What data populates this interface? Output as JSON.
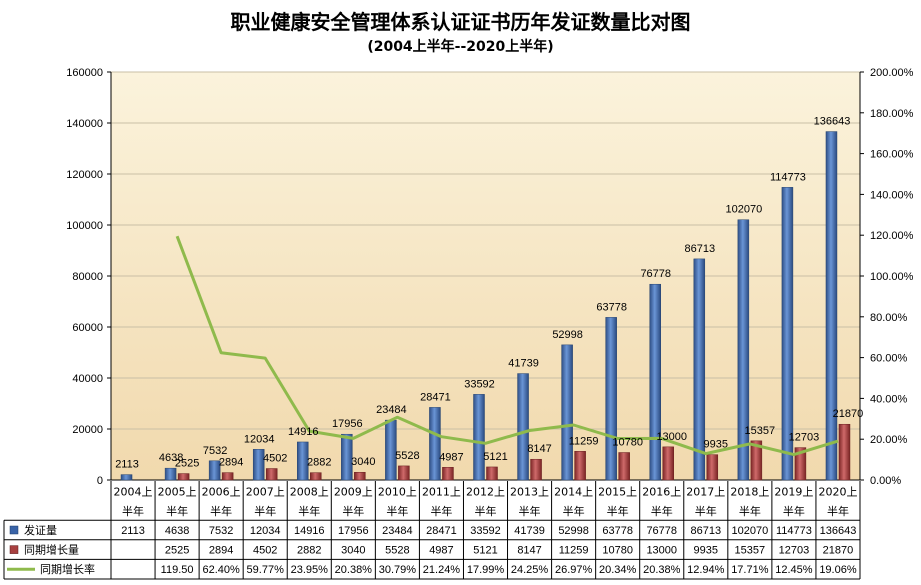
{
  "header": {
    "title": "职业健康安全管理体系认证证书历年发证数量比对图",
    "subtitle": "(2004上半年--2020上半年)"
  },
  "colors": {
    "bar_primary": "#3a64a8",
    "bar_secondary": "#a84040",
    "line": "#8fba4c",
    "plot_top": "#fbf3dc",
    "plot_bottom": "#f1d9ad"
  },
  "chart_data": {
    "type": "bar",
    "title": "职业健康安全管理体系认证证书历年发证数量比对图",
    "subtitle": "(2004上半年--2020上半年)",
    "categories": [
      "2004上半年",
      "2005上半年",
      "2006上半年",
      "2007上半年",
      "2008上半年",
      "2009上半年",
      "2010上半年",
      "2011上半年",
      "2012上半年",
      "2013上半年",
      "2014上半年",
      "2015上半年",
      "2016上半年",
      "2017上半年",
      "2018上半年",
      "2019上半年",
      "2020上半年"
    ],
    "category_lines": [
      [
        "2004上",
        "半年"
      ],
      [
        "2005上",
        "半年"
      ],
      [
        "2006上",
        "半年"
      ],
      [
        "2007上",
        "半年"
      ],
      [
        "2008上",
        "半年"
      ],
      [
        "2009上",
        "半年"
      ],
      [
        "2010上",
        "半年"
      ],
      [
        "2011上",
        "半年"
      ],
      [
        "2012上",
        "半年"
      ],
      [
        "2013上",
        "半年"
      ],
      [
        "2014上",
        "半年"
      ],
      [
        "2015上",
        "半年"
      ],
      [
        "2016上",
        "半年"
      ],
      [
        "2017上",
        "半年"
      ],
      [
        "2018上",
        "半年"
      ],
      [
        "2019上",
        "半年"
      ],
      [
        "2020上",
        "半年"
      ]
    ],
    "series": [
      {
        "name": "发证量",
        "type": "bar",
        "axis": "left",
        "values": [
          2113,
          4638,
          7532,
          12034,
          14916,
          17956,
          23484,
          28471,
          33592,
          41739,
          52998,
          63778,
          76778,
          86713,
          102070,
          114773,
          136643
        ]
      },
      {
        "name": "同期增长量",
        "type": "bar",
        "axis": "left",
        "values": [
          null,
          2525,
          2894,
          4502,
          2882,
          3040,
          5528,
          4987,
          5121,
          8147,
          11259,
          10780,
          13000,
          9935,
          15357,
          12703,
          21870
        ]
      },
      {
        "name": "同期增长率",
        "type": "line",
        "axis": "right",
        "values": [
          null,
          119.5,
          62.4,
          59.77,
          23.95,
          20.38,
          30.79,
          21.24,
          17.99,
          24.25,
          26.97,
          20.34,
          20.38,
          12.94,
          17.71,
          12.45,
          19.06
        ]
      }
    ],
    "rate_labels": [
      "",
      "119.50",
      "62.40%",
      "59.77%",
      "23.95%",
      "20.38%",
      "30.79%",
      "21.24%",
      "17.99%",
      "24.25%",
      "26.97%",
      "20.34%",
      "20.38%",
      "12.94%",
      "17.71%",
      "12.45%",
      "19.06%"
    ],
    "y_left": {
      "min": 0,
      "max": 160000,
      "step": 20000,
      "ticks": [
        "0",
        "20000",
        "40000",
        "60000",
        "80000",
        "100000",
        "120000",
        "140000",
        "160000"
      ]
    },
    "y_right": {
      "min": 0,
      "max": 200,
      "step": 20,
      "ticks": [
        "0.00%",
        "20.00%",
        "40.00%",
        "60.00%",
        "80.00%",
        "100.00%",
        "120.00%",
        "140.00%",
        "160.00%",
        "180.00%",
        "200.00%"
      ]
    },
    "legend_placement": "data-table-bottom"
  }
}
